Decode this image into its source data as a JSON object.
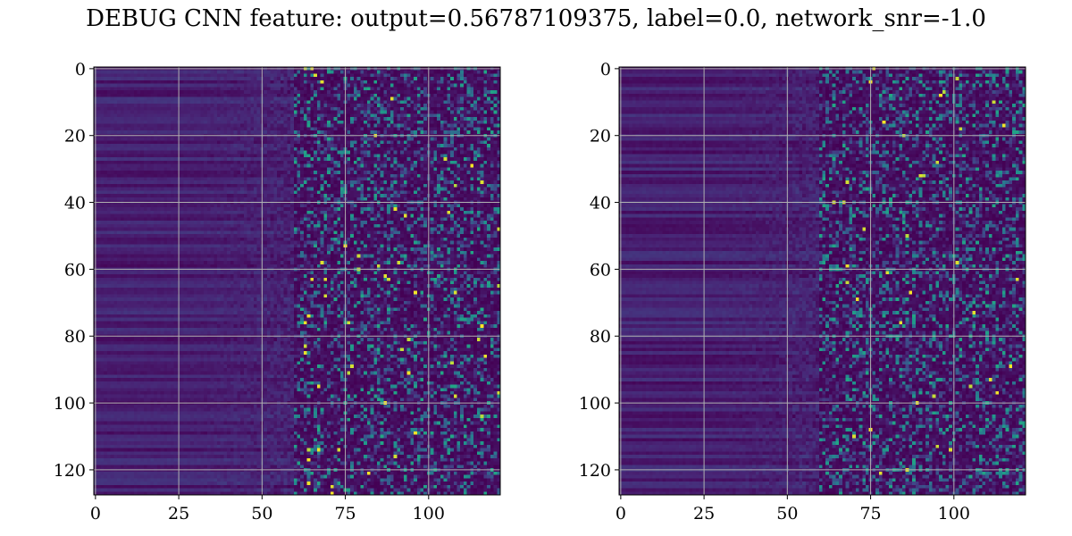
{
  "title": "DEBUG CNN feature: output=0.56787109375, label=0.0, network_snr=-1.0",
  "chart_data": [
    {
      "type": "heatmap",
      "colormap": "viridis",
      "rows": 128,
      "cols": 122,
      "xlim": [
        -0.5,
        121.5
      ],
      "ylim": [
        127.5,
        -0.5
      ],
      "xticks": [
        0,
        25,
        50,
        75,
        100
      ],
      "yticks": [
        0,
        20,
        40,
        60,
        80,
        100,
        120
      ],
      "grid": true,
      "values_note": "noise-like texture; row-striped low values at left, sparse high values at right",
      "seed": 7
    },
    {
      "type": "heatmap",
      "colormap": "viridis",
      "rows": 128,
      "cols": 122,
      "xlim": [
        -0.5,
        121.5
      ],
      "ylim": [
        127.5,
        -0.5
      ],
      "xticks": [
        0,
        25,
        50,
        75,
        100
      ],
      "yticks": [
        0,
        20,
        40,
        60,
        80,
        100,
        120
      ],
      "grid": true,
      "values_note": "noise-like texture; row-striped low values at left, sparse high values at right",
      "seed": 13
    }
  ]
}
